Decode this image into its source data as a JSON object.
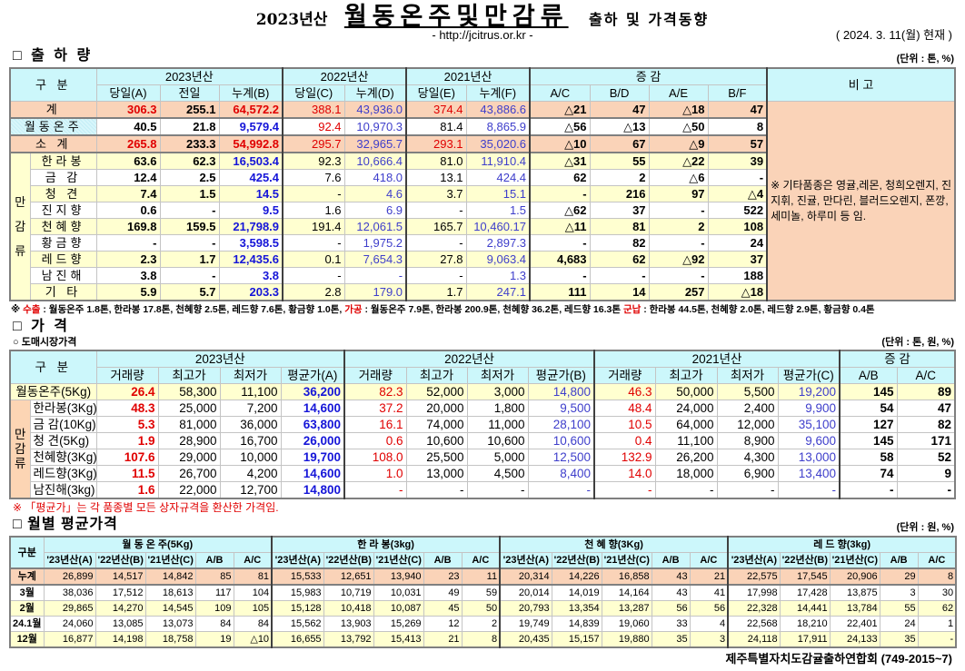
{
  "header": {
    "year": "2023년산",
    "title": "월동온주및만감류",
    "subtitle": "출하 및 가격동향",
    "url": "- http://jcitrus.or.kr -",
    "as_of": "( 2024.  3. 11(월) 현재 )"
  },
  "shipment": {
    "section_title": "□ 출 하 량",
    "unit": "(단위 : 톤, %)",
    "h_gubun": "구  분",
    "h_2023": "2023년산",
    "h_2022": "2022년산",
    "h_2021": "2021년산",
    "h_change": "증    감",
    "h_note": "비 고",
    "sub": [
      "당일(A)",
      "전일",
      "누계(B)",
      "당일(C)",
      "누계(D)",
      "당일(E)",
      "누계(F)",
      "A/C",
      "B/D",
      "A/E",
      "B/F"
    ],
    "group_label": [
      "만",
      "감",
      "류"
    ],
    "rows": [
      {
        "label": "계",
        "type": "total",
        "values": [
          "306.3",
          "255.1",
          "64,572.2",
          "388.1",
          "43,936.0",
          "374.4",
          "43,886.6",
          "△21",
          "47",
          "△18",
          "47"
        ]
      },
      {
        "label": "월동온주",
        "type": "wd",
        "values": [
          "40.5",
          "21.8",
          "9,579.4",
          "92.4",
          "10,970.3",
          "81.4",
          "8,865.9",
          "△56",
          "△13",
          "△50",
          "8"
        ]
      },
      {
        "label": "소  계",
        "type": "total",
        "values": [
          "265.8",
          "233.3",
          "54,992.8",
          "295.7",
          "32,965.7",
          "293.1",
          "35,020.6",
          "△10",
          "67",
          "△9",
          "57"
        ]
      },
      {
        "label": "한라봉",
        "type": "mg",
        "values": [
          "63.6",
          "62.3",
          "16,503.4",
          "92.3",
          "10,666.4",
          "81.0",
          "11,910.4",
          "△31",
          "55",
          "△22",
          "39"
        ]
      },
      {
        "label": "금  감",
        "type": "mg",
        "values": [
          "12.4",
          "2.5",
          "425.4",
          "7.6",
          "418.0",
          "13.1",
          "424.4",
          "62",
          "2",
          "△6",
          "-"
        ]
      },
      {
        "label": "청  견",
        "type": "mg",
        "values": [
          "7.4",
          "1.5",
          "14.5",
          "-",
          "4.6",
          "3.7",
          "15.1",
          "-",
          "216",
          "97",
          "△4"
        ]
      },
      {
        "label": "진지향",
        "type": "mg",
        "values": [
          "0.6",
          "-",
          "9.5",
          "1.6",
          "6.9",
          "-",
          "1.5",
          "△62",
          "37",
          "-",
          "522"
        ]
      },
      {
        "label": "천혜향",
        "type": "mg",
        "values": [
          "169.8",
          "159.5",
          "21,798.9",
          "191.4",
          "12,061.5",
          "165.7",
          "10,460.17",
          "△11",
          "81",
          "2",
          "108"
        ]
      },
      {
        "label": "황금향",
        "type": "mg",
        "values": [
          "-",
          "-",
          "3,598.5",
          "-",
          "1,975.2",
          "-",
          "2,897.3",
          "-",
          "82",
          "-",
          "24"
        ]
      },
      {
        "label": "레드향",
        "type": "mg",
        "values": [
          "2.3",
          "1.7",
          "12,435.6",
          "0.1",
          "7,654.3",
          "27.8",
          "9,063.4",
          "4,683",
          "62",
          "△92",
          "37"
        ]
      },
      {
        "label": "남진해",
        "type": "mg",
        "values": [
          "3.8",
          "-",
          "3.8",
          "-",
          "-",
          "-",
          "1.3",
          "-",
          "-",
          "-",
          "188"
        ]
      },
      {
        "label": "기  타",
        "type": "mg",
        "values": [
          "5.9",
          "5.7",
          "203.3",
          "2.8",
          "179.0",
          "1.7",
          "247.1",
          "111",
          "14",
          "257",
          "△18"
        ]
      }
    ],
    "note": "※ 기타품종은 영귤,레몬, 청희오렌지, 진지휘, 진귤, 만다린, 블러드오렌지, 폰깡,세미놀, 하루미 등 임.",
    "footnote": {
      "mark": "※ ",
      "export_label": "수출",
      "export_text": " : 월동온주 1.8톤, 한라봉 17.8톤, 천혜향 2.5톤, 레드향 7.6톤, 황금향 1.0톤, ",
      "process_label": "가공",
      "process_text": " : 월동온주 7.9톤, 한라봉 200.9톤, 천혜향 36.2톤, 레드향 16.3톤 ",
      "military_label": "군납",
      "military_text": " : 한라봉 44.5톤, 천혜향 2.0톤, 레드향 2.9톤, 황금향 0.4톤"
    }
  },
  "price": {
    "section_title": "□ 가     격",
    "sub_title": "○ 도매시장가격",
    "unit": "(단위 : 톤, 원, %)",
    "h_gubun": "구    분",
    "h_2023": "2023년산",
    "h_2022": "2022년산",
    "h_2021": "2021년산",
    "h_change": "증    감",
    "sub": [
      "거래량",
      "최고가",
      "최저가",
      "평균가(A)",
      "거래량",
      "최고가",
      "최저가",
      "평균가(B)",
      "거래량",
      "최고가",
      "최저가",
      "평균가(C)",
      "A/B",
      "A/C"
    ],
    "group_label": "만감류",
    "rows": [
      {
        "label": "월동온주(5Kg)",
        "type": "wd",
        "values": [
          "26.4",
          "58,300",
          "11,100",
          "36,200",
          "82.3",
          "52,000",
          "3,000",
          "14,800",
          "46.3",
          "50,000",
          "5,500",
          "19,200",
          "145",
          "89"
        ]
      },
      {
        "label": "한라봉(3Kg)",
        "type": "mg",
        "values": [
          "48.3",
          "25,000",
          "7,200",
          "14,600",
          "37.2",
          "20,000",
          "1,800",
          "9,500",
          "48.4",
          "24,000",
          "2,400",
          "9,900",
          "54",
          "47"
        ]
      },
      {
        "label": "금 감(10Kg)",
        "type": "mg",
        "values": [
          "5.3",
          "81,000",
          "36,000",
          "63,800",
          "16.1",
          "74,000",
          "11,000",
          "28,100",
          "10.5",
          "64,000",
          "12,000",
          "35,100",
          "127",
          "82"
        ]
      },
      {
        "label": "청   견(5Kg)",
        "type": "mg",
        "values": [
          "1.9",
          "28,900",
          "16,700",
          "26,000",
          "0.6",
          "10,600",
          "10,600",
          "10,600",
          "0.4",
          "11,100",
          "8,900",
          "9,600",
          "145",
          "171"
        ]
      },
      {
        "label": "천혜향(3Kg)",
        "type": "mg",
        "values": [
          "107.6",
          "29,000",
          "10,000",
          "19,700",
          "108.0",
          "25,500",
          "5,000",
          "12,500",
          "132.9",
          "26,200",
          "4,300",
          "13,000",
          "58",
          "52"
        ]
      },
      {
        "label": "레드향(3Kg)",
        "type": "mg",
        "values": [
          "11.5",
          "26,700",
          "4,200",
          "14,600",
          "1.0",
          "13,000",
          "4,500",
          "8,400",
          "14.0",
          "18,000",
          "6,900",
          "13,400",
          "74",
          "9"
        ]
      },
      {
        "label": "남진해(3kg)",
        "type": "mg",
        "values": [
          "1.6",
          "22,000",
          "12,700",
          "14,800",
          "-",
          "-",
          "-",
          "-",
          "-",
          "-",
          "-",
          "-",
          "-",
          "-"
        ]
      }
    ],
    "note": "※ 「평균가」는 각 품종별 모든 상자규격을 환산한 가격임."
  },
  "monthly": {
    "section_title": "□ 월별 평균가격",
    "unit": "(단위 : 원, %)",
    "h_gubun": "구분",
    "groups": [
      "월 동 온 주(5Kg)",
      "한  라  봉(3kg)",
      "천 혜 향(3Kg)",
      "레 드 향(3kg)"
    ],
    "sub": [
      "'23년산(A)",
      "'22년산(B)",
      "'21년산(C)",
      "A/B",
      "A/C"
    ],
    "rows": [
      {
        "label": "누계",
        "values": [
          "26,899",
          "14,517",
          "14,842",
          "85",
          "81",
          "15,533",
          "12,651",
          "13,940",
          "23",
          "11",
          "20,314",
          "14,226",
          "16,858",
          "43",
          "21",
          "22,575",
          "17,545",
          "20,906",
          "29",
          "8"
        ]
      },
      {
        "label": "3월",
        "values": [
          "38,036",
          "17,512",
          "18,613",
          "117",
          "104",
          "15,983",
          "10,719",
          "10,031",
          "49",
          "59",
          "20,014",
          "14,019",
          "14,164",
          "43",
          "41",
          "17,998",
          "17,428",
          "13,875",
          "3",
          "30"
        ]
      },
      {
        "label": "2월",
        "values": [
          "29,865",
          "14,270",
          "14,545",
          "109",
          "105",
          "15,128",
          "10,418",
          "10,087",
          "45",
          "50",
          "20,793",
          "13,354",
          "13,287",
          "56",
          "56",
          "22,328",
          "14,441",
          "13,784",
          "55",
          "62"
        ]
      },
      {
        "label": "24.1월",
        "values": [
          "24,060",
          "13,085",
          "13,073",
          "84",
          "84",
          "15,562",
          "13,903",
          "15,269",
          "12",
          "2",
          "19,749",
          "14,839",
          "19,060",
          "33",
          "4",
          "22,568",
          "18,210",
          "22,401",
          "24",
          "1"
        ]
      },
      {
        "label": "12월",
        "values": [
          "16,877",
          "14,198",
          "18,758",
          "19",
          "△10",
          "16,655",
          "13,792",
          "15,413",
          "21",
          "8",
          "20,435",
          "15,157",
          "19,880",
          "35",
          "3",
          "24,118",
          "17,911",
          "24,133",
          "35",
          "-"
        ]
      }
    ]
  },
  "footer": "제주특별자치도감귤출하연합회 (749-2015~7)",
  "colors": {
    "header_bg": "#ccf7fb",
    "total_bg": "#fad3b8",
    "highlight_bg": "#ffffd0",
    "red": "#e00000",
    "blue": "#1515d8"
  }
}
